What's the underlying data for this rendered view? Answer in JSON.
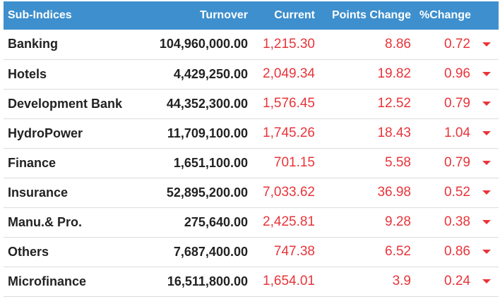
{
  "table": {
    "headers": {
      "name": "Sub-Indices",
      "turnover": "Turnover",
      "current": "Current",
      "points_change": "Points Change",
      "pct_change": "%Change"
    },
    "rows": [
      {
        "name": "Banking",
        "turnover": "104,960,000.00",
        "current": "1,215.30",
        "points_change": "8.86",
        "pct_change": "0.72",
        "trend_icon": "caret-down-icon"
      },
      {
        "name": "Hotels",
        "turnover": "4,429,250.00",
        "current": "2,049.34",
        "points_change": "19.82",
        "pct_change": "0.96",
        "trend_icon": "caret-down-icon"
      },
      {
        "name": "Development Bank",
        "turnover": "44,352,300.00",
        "current": "1,576.45",
        "points_change": "12.52",
        "pct_change": "0.79",
        "trend_icon": "caret-down-icon"
      },
      {
        "name": "HydroPower",
        "turnover": "11,709,100.00",
        "current": "1,745.26",
        "points_change": "18.43",
        "pct_change": "1.04",
        "trend_icon": "caret-down-icon"
      },
      {
        "name": "Finance",
        "turnover": "1,651,100.00",
        "current": "701.15",
        "points_change": "5.58",
        "pct_change": "0.79",
        "trend_icon": "caret-down-icon"
      },
      {
        "name": "Insurance",
        "turnover": "52,895,200.00",
        "current": "7,033.62",
        "points_change": "36.98",
        "pct_change": "0.52",
        "trend_icon": "caret-down-icon"
      },
      {
        "name": "Manu.& Pro.",
        "turnover": "275,640.00",
        "current": "2,425.81",
        "points_change": "9.28",
        "pct_change": "0.38",
        "trend_icon": "caret-down-icon"
      },
      {
        "name": "Others",
        "turnover": "7,687,400.00",
        "current": "747.38",
        "points_change": "6.52",
        "pct_change": "0.86",
        "trend_icon": "caret-down-icon"
      },
      {
        "name": "Microfinance",
        "turnover": "16,511,800.00",
        "current": "1,654.01",
        "points_change": "3.9",
        "pct_change": "0.24",
        "trend_icon": "caret-down-icon"
      }
    ]
  },
  "colors": {
    "header_bg": "#3d8fcd",
    "negative": "#e8343a",
    "text": "#222222"
  }
}
